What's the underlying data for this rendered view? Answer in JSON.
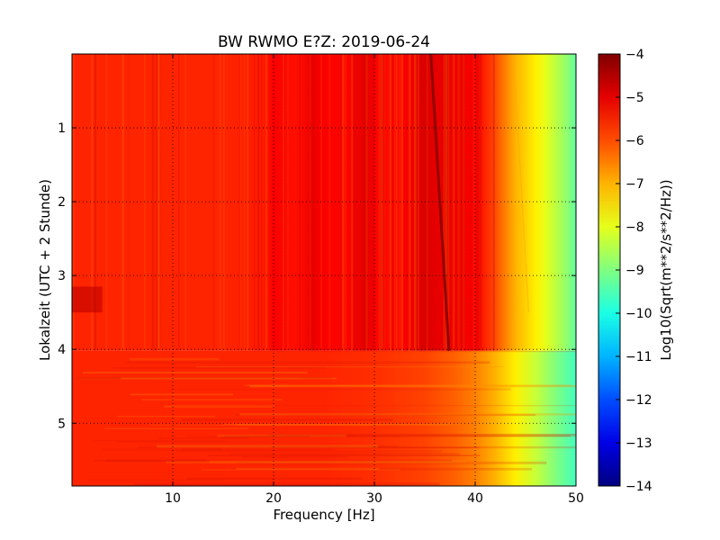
{
  "chart_data": {
    "type": "heatmap",
    "title": "BW RWMO E?Z: 2019-06-24",
    "xlabel": "Frequency [Hz]",
    "ylabel": "Lokalzeit (UTC + 2 Stunde)",
    "colorbar_label": "Log10(Sqrt(m**2/s**2/Hz))",
    "x_range": [
      0,
      50
    ],
    "y_range": [
      0,
      5.85
    ],
    "y_inverted": true,
    "x_ticks": [
      10,
      20,
      30,
      40,
      50
    ],
    "y_ticks": [
      1,
      2,
      3,
      4,
      5
    ],
    "grid": true,
    "colormap": "jet",
    "color_range": [
      -14,
      -4
    ],
    "colorbar_ticks": [
      -4,
      -5,
      -6,
      -7,
      -8,
      -9,
      -10,
      -11,
      -12,
      -13,
      -14
    ],
    "spectrum_upper": {
      "time_range": [
        0,
        4.02
      ],
      "frequency_hz": [
        0,
        5,
        10,
        15,
        19,
        20,
        22,
        24,
        25,
        27,
        29,
        30,
        31,
        33,
        35,
        36,
        38,
        40,
        41,
        42,
        43,
        44,
        45,
        46,
        47,
        48,
        49,
        50
      ],
      "log10_amplitude": [
        -5.6,
        -5.6,
        -5.6,
        -5.6,
        -5.5,
        -5.2,
        -5.4,
        -5.1,
        -5.2,
        -5.3,
        -5.0,
        -5.2,
        -5.4,
        -5.2,
        -4.9,
        -5.0,
        -5.1,
        -5.2,
        -5.6,
        -6.0,
        -6.5,
        -7.0,
        -7.3,
        -7.6,
        -8.0,
        -8.4,
        -8.8,
        -9.3
      ]
    },
    "spectrum_lower": {
      "time_range": [
        4.02,
        5.85
      ],
      "frequency_hz": [
        0,
        10,
        20,
        25,
        30,
        35,
        38,
        40,
        42,
        44,
        46,
        48,
        50
      ],
      "log10_amplitude": [
        -5.6,
        -5.6,
        -5.6,
        -5.6,
        -5.7,
        -5.9,
        -6.2,
        -6.5,
        -7.0,
        -7.6,
        -8.3,
        -9.0,
        -9.6
      ]
    },
    "drifting_line": {
      "points": [
        {
          "time": 0.0,
          "frequency": 35.6
        },
        {
          "time": 4.02,
          "frequency": 37.4
        }
      ],
      "log10_amplitude": -4.2
    },
    "faint_line": {
      "points": [
        {
          "time": 0.0,
          "frequency": 43.8
        },
        {
          "time": 3.5,
          "frequency": 45.3
        }
      ],
      "log10_amplitude": -6.9
    },
    "event": {
      "time_range": [
        3.15,
        3.5
      ],
      "frequency_range": [
        0,
        3
      ],
      "log10_amplitude": -4.6
    }
  }
}
